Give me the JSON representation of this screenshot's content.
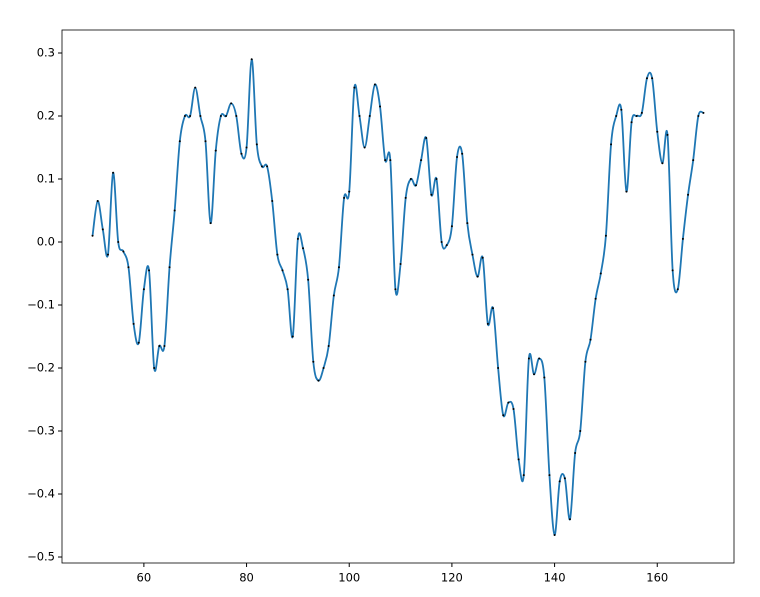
{
  "chart_data": {
    "type": "line",
    "x": [
      50,
      51,
      52,
      53,
      54,
      55,
      56,
      57,
      58,
      59,
      60,
      61,
      62,
      63,
      64,
      65,
      66,
      67,
      68,
      69,
      70,
      71,
      72,
      73,
      74,
      75,
      76,
      77,
      78,
      79,
      80,
      81,
      82,
      83,
      84,
      85,
      86,
      87,
      88,
      89,
      90,
      91,
      92,
      93,
      94,
      95,
      96,
      97,
      98,
      99,
      100,
      101,
      102,
      103,
      104,
      105,
      106,
      107,
      108,
      109,
      110,
      111,
      112,
      113,
      114,
      115,
      116,
      117,
      118,
      119,
      120,
      121,
      122,
      123,
      124,
      125,
      126,
      127,
      128,
      129,
      130,
      131,
      132,
      133,
      134,
      135,
      136,
      137,
      138,
      139,
      140,
      141,
      142,
      143,
      144,
      145,
      146,
      147,
      148,
      149,
      150,
      151,
      152,
      153,
      154,
      155,
      156,
      157,
      158,
      159,
      160,
      161,
      162,
      163,
      164,
      165,
      166,
      167,
      168,
      169
    ],
    "series": [
      {
        "color": "#1f77b4",
        "marker_color": "#000000",
        "values": [
          0.01,
          0.065,
          0.02,
          -0.02,
          0.11,
          0.0,
          -0.015,
          -0.04,
          -0.13,
          -0.16,
          -0.075,
          -0.045,
          -0.2,
          -0.165,
          -0.165,
          -0.04,
          0.05,
          0.16,
          0.2,
          0.2,
          0.245,
          0.2,
          0.16,
          0.03,
          0.145,
          0.2,
          0.2,
          0.22,
          0.2,
          0.14,
          0.15,
          0.29,
          0.155,
          0.12,
          0.12,
          0.065,
          -0.02,
          -0.045,
          -0.075,
          -0.15,
          0.005,
          -0.01,
          -0.06,
          -0.19,
          -0.22,
          -0.2,
          -0.165,
          -0.085,
          -0.04,
          0.07,
          0.08,
          0.245,
          0.2,
          0.15,
          0.2,
          0.25,
          0.215,
          0.13,
          0.13,
          -0.075,
          -0.035,
          0.07,
          0.1,
          0.09,
          0.13,
          0.165,
          0.075,
          0.1,
          0.0,
          -0.005,
          0.025,
          0.135,
          0.14,
          0.03,
          -0.02,
          -0.055,
          -0.025,
          -0.13,
          -0.105,
          -0.2,
          -0.275,
          -0.255,
          -0.265,
          -0.345,
          -0.37,
          -0.185,
          -0.21,
          -0.185,
          -0.215,
          -0.37,
          -0.465,
          -0.38,
          -0.375,
          -0.44,
          -0.335,
          -0.3,
          -0.19,
          -0.155,
          -0.09,
          -0.05,
          0.01,
          0.155,
          0.2,
          0.21,
          0.08,
          0.19,
          0.2,
          0.205,
          0.26,
          0.26,
          0.175,
          0.125,
          0.17,
          -0.045,
          -0.075,
          0.005,
          0.075,
          0.13,
          0.2,
          0.205
        ]
      }
    ],
    "xlim": [
      44.05,
      174.95
    ],
    "xticks": [
      60,
      80,
      100,
      120,
      140,
      160
    ],
    "ylim": [
      -0.5095,
      0.3365
    ],
    "yticks": [
      {
        "value": -0.5,
        "label": "−0.5"
      },
      {
        "value": -0.4,
        "label": "−0.4"
      },
      {
        "value": -0.3,
        "label": "−0.3"
      },
      {
        "value": -0.2,
        "label": "−0.2"
      },
      {
        "value": -0.1,
        "label": "−0.1"
      },
      {
        "value": 0,
        "label": "0.0"
      },
      0.1,
      0.2,
      0.3
    ],
    "grid": false,
    "markers": true
  }
}
